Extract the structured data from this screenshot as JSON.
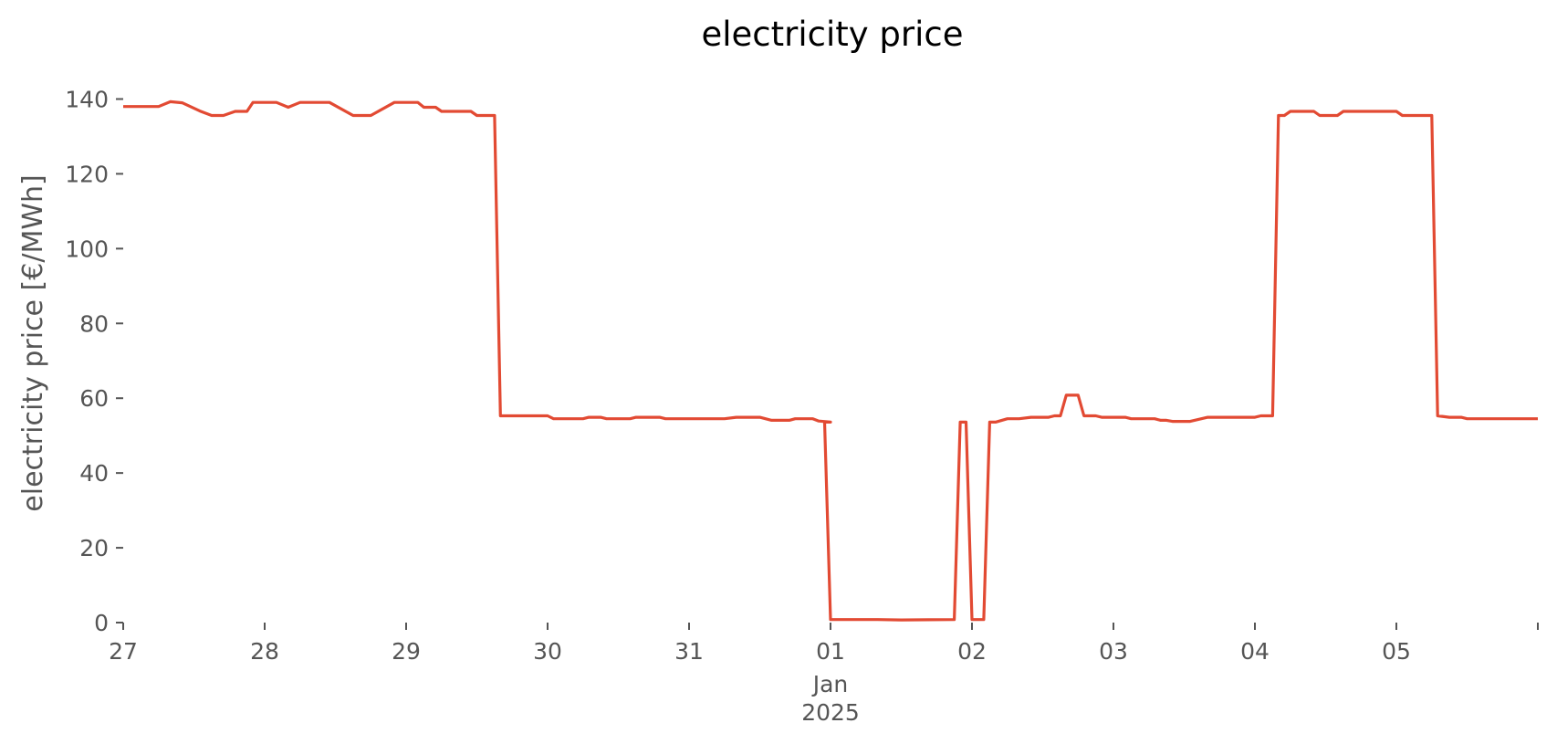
{
  "chart_data": {
    "type": "line",
    "title": "electricity price",
    "xlabel": "",
    "ylabel": "electricity price [€/MWh]",
    "ylim": [
      0,
      145
    ],
    "xlim": [
      "2024-12-27T00:00",
      "2025-01-06T00:00"
    ],
    "grid": false,
    "x_ticks": [
      {
        "x": "2024-12-27",
        "label": "27"
      },
      {
        "x": "2024-12-28",
        "label": "28"
      },
      {
        "x": "2024-12-29",
        "label": "29"
      },
      {
        "x": "2024-12-30",
        "label": "30"
      },
      {
        "x": "2024-12-31",
        "label": "31"
      },
      {
        "x": "2025-01-01",
        "label": "01"
      },
      {
        "x": "2025-01-02",
        "label": "02"
      },
      {
        "x": "2025-01-03",
        "label": "03"
      },
      {
        "x": "2025-01-04",
        "label": "04"
      },
      {
        "x": "2025-01-05",
        "label": "05"
      },
      {
        "x": "2025-01-06",
        "label": ""
      }
    ],
    "x_sublabel": {
      "month": "Jan",
      "year": "2025"
    },
    "y_ticks": [
      0,
      20,
      40,
      60,
      80,
      100,
      120,
      140
    ],
    "series": [
      {
        "color": "#E24A33",
        "points": [
          [
            "2024-12-27T00:00",
            138
          ],
          [
            "2024-12-27T06:00",
            138
          ],
          [
            "2024-12-27T08:00",
            139.3
          ],
          [
            "2024-12-27T10:00",
            139
          ],
          [
            "2024-12-27T13:00",
            136.8
          ],
          [
            "2024-12-27T15:00",
            135.6
          ],
          [
            "2024-12-27T17:00",
            135.6
          ],
          [
            "2024-12-27T19:00",
            136.7
          ],
          [
            "2024-12-27T21:00",
            136.7
          ],
          [
            "2024-12-27T22:00",
            139.1
          ],
          [
            "2024-12-28T02:00",
            139.1
          ],
          [
            "2024-12-28T04:00",
            137.8
          ],
          [
            "2024-12-28T06:00",
            139.1
          ],
          [
            "2024-12-28T11:00",
            139.1
          ],
          [
            "2024-12-28T15:00",
            135.6
          ],
          [
            "2024-12-28T18:00",
            135.6
          ],
          [
            "2024-12-28T22:00",
            139.1
          ],
          [
            "2024-12-29T02:00",
            139.1
          ],
          [
            "2024-12-29T03:00",
            137.8
          ],
          [
            "2024-12-29T05:00",
            137.8
          ],
          [
            "2024-12-29T06:00",
            136.7
          ],
          [
            "2024-12-29T11:00",
            136.7
          ],
          [
            "2024-12-29T12:00",
            135.6
          ],
          [
            "2024-12-29T15:00",
            135.6
          ],
          [
            "2024-12-29T16:00",
            55.3
          ],
          [
            "2024-12-29T23:59",
            55.3
          ],
          [
            "2024-12-30T00:00",
            55.3
          ],
          [
            "2024-12-30T01:00",
            54.5
          ],
          [
            "2024-12-30T06:00",
            54.5
          ],
          [
            "2024-12-30T07:00",
            54.9
          ],
          [
            "2024-12-30T09:00",
            54.9
          ],
          [
            "2024-12-30T10:00",
            54.5
          ],
          [
            "2024-12-30T14:00",
            54.5
          ],
          [
            "2024-12-30T15:00",
            54.9
          ],
          [
            "2024-12-30T19:00",
            54.9
          ],
          [
            "2024-12-30T20:00",
            54.5
          ],
          [
            "2024-12-31T06:00",
            54.5
          ],
          [
            "2024-12-31T08:00",
            54.9
          ],
          [
            "2024-12-31T12:00",
            54.9
          ],
          [
            "2024-12-31T14:00",
            54.1
          ],
          [
            "2024-12-31T17:00",
            54.1
          ],
          [
            "2024-12-31T18:00",
            54.5
          ],
          [
            "2024-12-31T21:00",
            54.5
          ],
          [
            "2024-12-31T22:00",
            53.9
          ],
          [
            "2025-01-01T00:00",
            53.6
          ],
          [
            "2024-12-31T23:00",
            53.6
          ],
          [
            "2025-01-01T00:00",
            0.8
          ],
          [
            "2025-01-01T08:00",
            0.8
          ],
          [
            "2025-01-01T12:00",
            0.7
          ],
          [
            "2025-01-01T21:00",
            0.8
          ],
          [
            "2025-01-01T22:00",
            53.6
          ],
          [
            "2025-01-01T23:00",
            53.6
          ],
          [
            "2025-01-02T00:00",
            0.8
          ],
          [
            "2025-01-02T02:00",
            0.8
          ],
          [
            "2025-01-02T03:00",
            53.6
          ],
          [
            "2025-01-02T04:00",
            53.6
          ],
          [
            "2025-01-02T06:00",
            54.5
          ],
          [
            "2025-01-02T08:00",
            54.5
          ],
          [
            "2025-01-02T10:00",
            54.9
          ],
          [
            "2025-01-02T13:00",
            54.9
          ],
          [
            "2025-01-02T14:00",
            55.3
          ],
          [
            "2025-01-02T15:00",
            55.3
          ],
          [
            "2025-01-02T16:00",
            60.8
          ],
          [
            "2025-01-02T18:00",
            60.8
          ],
          [
            "2025-01-02T19:00",
            55.3
          ],
          [
            "2025-01-02T21:00",
            55.3
          ],
          [
            "2025-01-02T22:00",
            54.9
          ],
          [
            "2025-01-03T02:00",
            54.9
          ],
          [
            "2025-01-03T03:00",
            54.5
          ],
          [
            "2025-01-03T07:00",
            54.5
          ],
          [
            "2025-01-03T08:00",
            54.1
          ],
          [
            "2025-01-03T09:00",
            54.1
          ],
          [
            "2025-01-03T10:00",
            53.8
          ],
          [
            "2025-01-03T13:00",
            53.8
          ],
          [
            "2025-01-03T16:00",
            54.9
          ],
          [
            "2025-01-03T23:00",
            54.9
          ],
          [
            "2025-01-04T00:00",
            54.9
          ],
          [
            "2025-01-04T01:00",
            55.3
          ],
          [
            "2025-01-04T03:00",
            55.3
          ],
          [
            "2025-01-04T04:00",
            135.6
          ],
          [
            "2025-01-04T05:00",
            135.6
          ],
          [
            "2025-01-04T06:00",
            136.7
          ],
          [
            "2025-01-04T10:00",
            136.7
          ],
          [
            "2025-01-04T11:00",
            135.6
          ],
          [
            "2025-01-04T14:00",
            135.6
          ],
          [
            "2025-01-04T15:00",
            136.7
          ],
          [
            "2025-01-04T22:00",
            136.7
          ],
          [
            "2025-01-05T00:00",
            136.7
          ],
          [
            "2025-01-05T01:00",
            135.6
          ],
          [
            "2025-01-05T06:00",
            135.6
          ],
          [
            "2025-01-05T07:00",
            55.3
          ],
          [
            "2025-01-05T09:00",
            54.9
          ],
          [
            "2025-01-05T11:00",
            54.9
          ],
          [
            "2025-01-05T12:00",
            54.5
          ],
          [
            "2025-01-06T00:00",
            54.5
          ]
        ]
      }
    ]
  }
}
